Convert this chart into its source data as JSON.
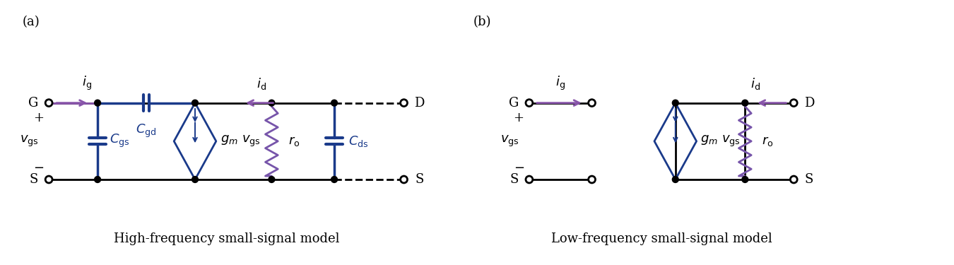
{
  "bg_color": "#ffffff",
  "line_color": "#000000",
  "comp_color": "#1a3a8a",
  "arrow_color": "#8855aa",
  "res_color": "#7755aa",
  "label_a": "(a)",
  "label_b": "(b)",
  "title_a": "High-frequency small-signal model",
  "title_b": "Low-frequency small-signal model"
}
